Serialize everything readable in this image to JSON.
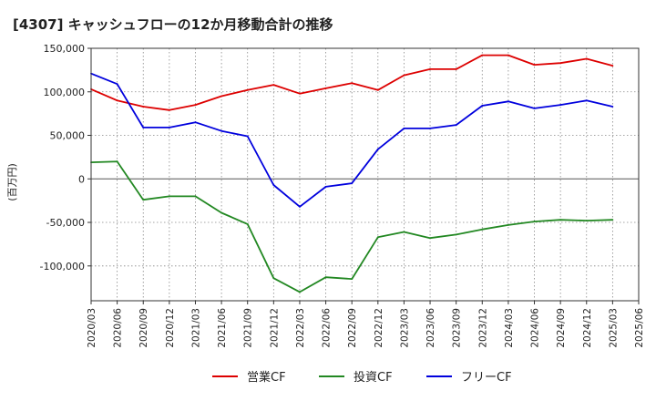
{
  "chart_data": {
    "type": "line",
    "title": "[4307]  キャッシュフローの12か月移動合計の推移",
    "ylabel": "(百万円)",
    "xlabel": "",
    "ylim": [
      -140000,
      150000
    ],
    "y_ticks": [
      150000,
      100000,
      50000,
      0,
      -50000,
      -100000
    ],
    "y_tick_labels": [
      "150,000",
      "100,000",
      "50,000",
      "0",
      "-50,000",
      "-100,000"
    ],
    "x_tick_labels": [
      "2020/03",
      "2020/06",
      "2020/09",
      "2020/12",
      "2021/03",
      "2021/06",
      "2021/09",
      "2021/12",
      "2022/03",
      "2022/06",
      "2022/09",
      "2022/12",
      "2023/03",
      "2023/06",
      "2023/09",
      "2023/12",
      "2024/03",
      "2024/06",
      "2024/09",
      "2024/12",
      "2025/03",
      "2025/06"
    ],
    "grid": true,
    "legend_position": "bottom-center",
    "series": [
      {
        "name": "営業CF",
        "color": "#dd0000",
        "values": [
          103000,
          90000,
          83000,
          79000,
          85000,
          95000,
          102000,
          108000,
          98000,
          104000,
          110000,
          102000,
          119000,
          126000,
          126000,
          142000,
          142000,
          131000,
          133000,
          138000,
          130000
        ]
      },
      {
        "name": "投資CF",
        "color": "#228822",
        "values": [
          19000,
          20000,
          -24000,
          -20000,
          -20000,
          -39000,
          -52000,
          -114000,
          -130000,
          -113000,
          -115000,
          -67000,
          -61000,
          -68000,
          -64000,
          -58000,
          -53000,
          -49000,
          -47000,
          -48000,
          -47000
        ]
      },
      {
        "name": "フリーCF",
        "color": "#0000dd",
        "values": [
          121000,
          109000,
          59000,
          59000,
          65000,
          55000,
          49000,
          -7000,
          -32000,
          -9000,
          -5000,
          34000,
          58000,
          58000,
          62000,
          84000,
          89000,
          81000,
          85000,
          90000,
          83000
        ]
      }
    ]
  }
}
